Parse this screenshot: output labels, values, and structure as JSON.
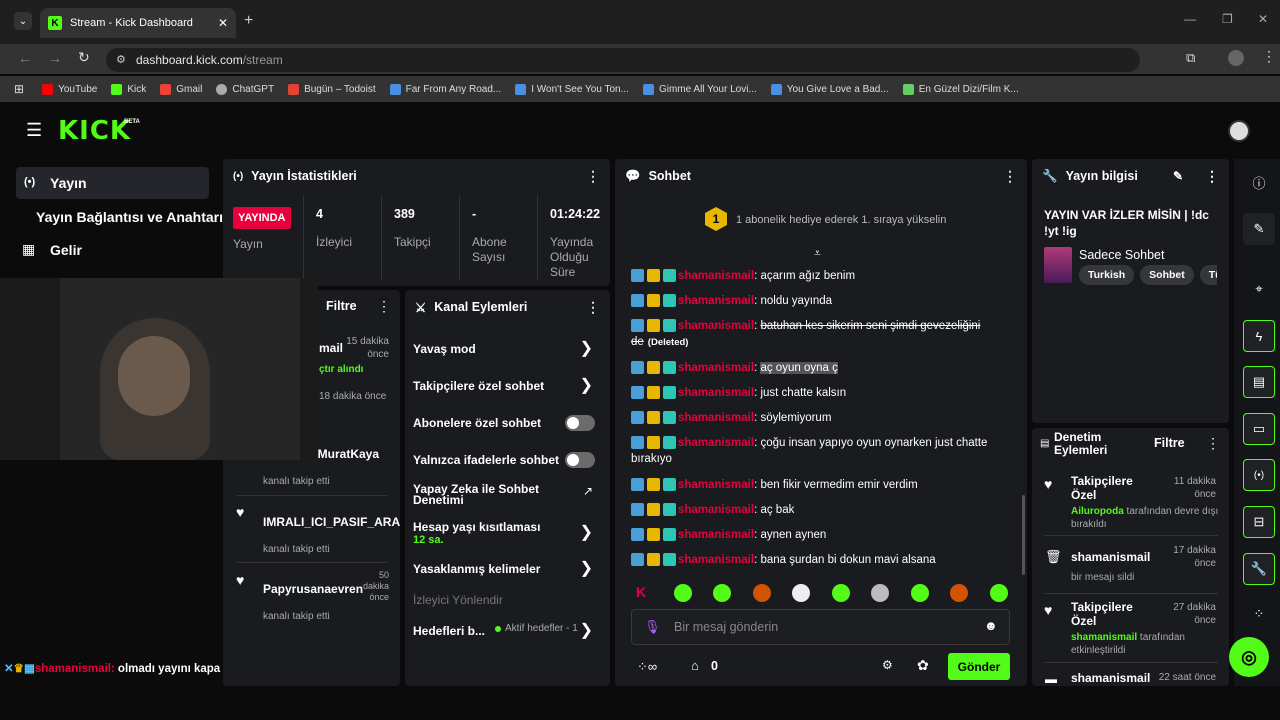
{
  "browser": {
    "tab_title": "Stream - Kick Dashboard",
    "url_host": "dashboard.kick.com",
    "url_path": "/stream"
  },
  "bookmarks": [
    "YouTube",
    "Kick",
    "Gmail",
    "ChatGPT",
    "Bugün – Todoist",
    "Far From Any Road...",
    "I Won't See You Ton...",
    "Gimme All Your Lovi...",
    "You Give Love a Bad...",
    "En Güzel Dizi/Film K..."
  ],
  "app": {
    "logo": "KICK",
    "beta": "BETA"
  },
  "sidebar": {
    "items": [
      "Yayın",
      "Yayın Bağlantısı ve Anahtarı",
      "Gelir"
    ]
  },
  "stats": {
    "title": "Yayın İstatistikleri",
    "live_badge": "YAYINDA",
    "live_label": "Yayın",
    "viewers": "4",
    "viewers_label": "İzleyici",
    "followers": "389",
    "followers_label": "Takipçi",
    "subs": "-",
    "subs_label": "Abone Sayısı",
    "uptime": "01:24:22",
    "uptime_label": "Yayında Olduğu Süre"
  },
  "activity": {
    "filter": "Filtre",
    "items": [
      {
        "name": "mail",
        "time": "15 dakika önce",
        "sub": "çtır alındı"
      },
      {
        "name": "",
        "time": "18 dakika önce",
        "sub": ""
      },
      {
        "name": "sMuratKaya",
        "time": "",
        "sub": "kanalı takip etti"
      },
      {
        "name": "IMRALI_ICI_PASIF_ARA",
        "time": "",
        "sub": "kanalı takip etti"
      },
      {
        "name": "Papyrusanaevren",
        "time": "50 dakika önce",
        "sub": "kanalı takip etti"
      }
    ]
  },
  "overlay_chat": {
    "user": "shamanismail:",
    "text": " olmadı yayını kapa"
  },
  "channel_actions": {
    "title": "Kanal Eylemleri",
    "slow": "Yavaş mod",
    "followers_only": "Takipçilere özel sohbet",
    "subs_only": "Abonelere özel sohbet",
    "emotes_only": "Yalnızca ifadelerle sohbet",
    "ai_mod": "Yapay Zeka ile Sohbet Denetimi",
    "age": "Hesap yaşı kısıtlaması",
    "age_value": "12 sa.",
    "banned": "Yasaklanmış kelimeler",
    "redirect": "İzleyici Yönlendir",
    "goals": "Hedefleri b...",
    "goals_status": "Aktif hedefler - 1"
  },
  "chat": {
    "title": "Sohbet",
    "gift_rank": "1",
    "gift_text": "1 abonelik hediye ederek 1. sıraya yükselin",
    "placeholder": "Bir mesaj gönderin",
    "points": "0",
    "send": "Gönder",
    "messages": [
      {
        "user": "shamanismail",
        "text": "açarım ağız benim"
      },
      {
        "user": "shamanismail",
        "text": "noldu yayında"
      },
      {
        "user": "shamanismail",
        "text": "batuhan kes sikerim seni şimdi gevezeliğini de",
        "deleted": "(Deleted)"
      },
      {
        "user": "shamanismail",
        "text": "aç oyun oyna ç"
      },
      {
        "user": "shamanismail",
        "text": "just chatte kalsın"
      },
      {
        "user": "shamanismail",
        "text": "söylemiyorum"
      },
      {
        "user": "shamanismail",
        "text": "çoğu insan yapıyo oyun oynarken just chatte bırakıyo"
      },
      {
        "user": "shamanismail",
        "text": "ben fikir vermedim emir verdim"
      },
      {
        "user": "shamanismail",
        "text": "aç bak"
      },
      {
        "user": "shamanismail",
        "text": "aynen aynen"
      },
      {
        "user": "shamanismail",
        "text": "bana şurdan bi dokun mavi alsana"
      }
    ]
  },
  "stream_info": {
    "title": "Yayın bilgisi",
    "stream_title": "YAYIN VAR İZLER MİSİN | !dc !yt !ig",
    "category": "Sadece Sohbet",
    "tags": [
      "Turkish",
      "Sohbet",
      "Türk"
    ]
  },
  "mod_actions": {
    "title": "Denetim Eylemleri",
    "filter": "Filtre",
    "items": [
      {
        "title": "Takipçilere Özel",
        "time": "11 dakika önce",
        "actor": "Ailuropoda",
        "desc": " tarafından devre dışı bırakıldı"
      },
      {
        "title": "shamanismail",
        "time": "17 dakika önce",
        "actor": "",
        "desc": "bir mesajı sildi"
      },
      {
        "title": "Takipçilere Özel",
        "time": "27 dakika önce",
        "actor": "shamanismail",
        "desc": " tarafından etkinleştirildi"
      },
      {
        "title": "shamanismail",
        "time": "22 saat önce",
        "actor": "",
        "desc": ""
      }
    ]
  },
  "colors": {
    "accent": "#53fc18",
    "user": "#e8003e",
    "panel": "#191b1f",
    "live": "#e8003e"
  }
}
